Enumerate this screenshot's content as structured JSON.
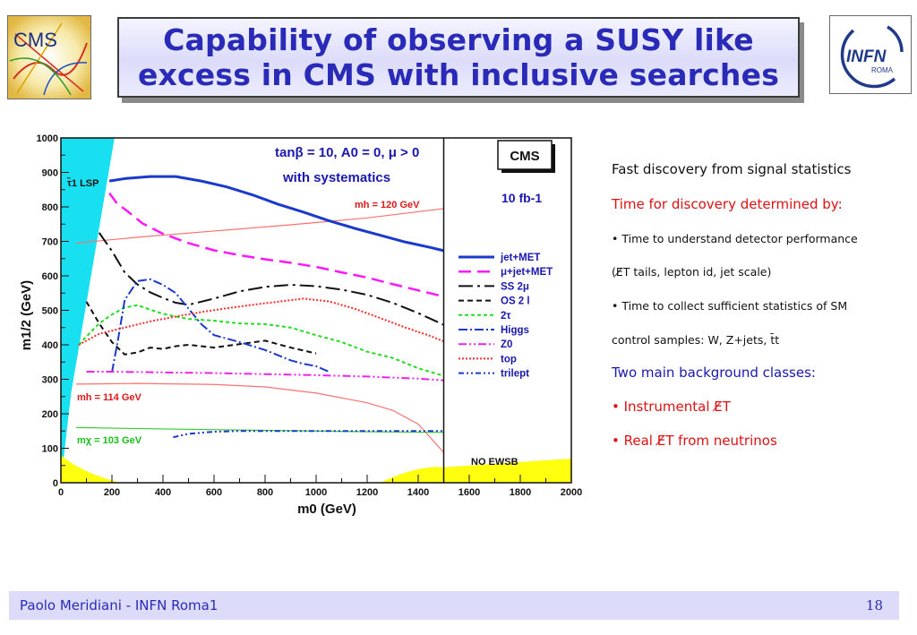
{
  "slide": {
    "title_line1": "Capability of observing a SUSY like",
    "title_line2": "excess in CMS with inclusive searches",
    "cms_logo_text": "CMS",
    "infn_logo_text": "INFN",
    "infn_logo_sub": "ROMA"
  },
  "notes": {
    "n1": "Fast discovery from signal statistics",
    "n2": "Time for discovery determined by:",
    "n3": "• Time to understand detector performance",
    "n4": "(E̸T tails, lepton id, jet scale)",
    "n5": "• Time to collect sufficient statistics of SM",
    "n6": "control samples: W, Z+jets, t̄t",
    "n7": "Two main background classes:",
    "n8": "• Instrumental E̸T",
    "n9": "• Real E̸T from neutrinos"
  },
  "footer": {
    "author": "Paolo Meridiani  - INFN Roma1",
    "page": "18"
  },
  "chart_data": {
    "type": "line",
    "xlabel": "m0 (GeV)",
    "ylabel": "m1/2 (GeV)",
    "xlim": [
      0,
      2000
    ],
    "ylim": [
      0,
      1000
    ],
    "xticks": [
      "0",
      "200",
      "400",
      "600",
      "800",
      "1000",
      "1200",
      "1400",
      "1600",
      "1800",
      "2000"
    ],
    "yticks": [
      "0",
      "100",
      "200",
      "300",
      "400",
      "500",
      "600",
      "700",
      "800",
      "900",
      "1000"
    ],
    "divider_x": 1500,
    "annotations": {
      "params1": "tanβ = 10, A0 = 0, μ > 0",
      "params2": "with systematics",
      "lumi": "10 fb-1",
      "cms_box": "CMS",
      "lsp": "τ̃1 LSP",
      "mh120": "mh = 120 GeV",
      "mh114": "mh = 114 GeV",
      "mchi103": "mχ = 103 GeV",
      "no_ewsb": "NO EWSB"
    },
    "colors": {
      "lsp_fill": "#18e0f0",
      "ewsb_fill": "#ffff10",
      "legend_text": "#1818b0",
      "mh_text": "#e01818",
      "mchi_text": "#18c018"
    },
    "series": [
      {
        "name": "jet+MET",
        "color": "#1a3acc",
        "dash": "",
        "width": 3,
        "x": [
          190,
          250,
          350,
          450,
          550,
          650,
          750,
          850,
          950,
          1050,
          1150,
          1250,
          1350,
          1450,
          1500
        ],
        "y": [
          875,
          882,
          888,
          888,
          875,
          858,
          835,
          808,
          785,
          760,
          738,
          718,
          698,
          682,
          673
        ]
      },
      {
        "name": "μ+jet+MET",
        "color": "#ff18ff",
        "dash": "14,7",
        "width": 2.5,
        "x": [
          190,
          220,
          260,
          320,
          400,
          500,
          600,
          700,
          800,
          900,
          1000,
          1100,
          1200,
          1300,
          1400,
          1500
        ],
        "y": [
          840,
          810,
          788,
          752,
          722,
          695,
          674,
          660,
          648,
          638,
          626,
          610,
          595,
          576,
          558,
          540
        ]
      },
      {
        "name": "SS 2μ",
        "color": "#111111",
        "dash": "16,5,3,5",
        "width": 2,
        "x": [
          150,
          200,
          250,
          300,
          350,
          400,
          450,
          500,
          600,
          700,
          800,
          900,
          1000,
          1100,
          1200,
          1300,
          1400,
          1500
        ],
        "y": [
          725,
          672,
          610,
          575,
          552,
          536,
          522,
          516,
          534,
          555,
          568,
          574,
          570,
          560,
          545,
          522,
          492,
          458
        ]
      },
      {
        "name": "OS 2 l",
        "color": "#111111",
        "dash": "6,4",
        "width": 2,
        "x": [
          100,
          150,
          200,
          250,
          300,
          350,
          400,
          450,
          500,
          600,
          700,
          800,
          900,
          1000
        ],
        "y": [
          525,
          462,
          408,
          372,
          378,
          392,
          388,
          396,
          400,
          392,
          402,
          412,
          392,
          375
        ]
      },
      {
        "name": "2τ",
        "color": "#22dd22",
        "dash": "4,3",
        "width": 2,
        "x": [
          70,
          100,
          150,
          200,
          250,
          300,
          350,
          400,
          450,
          500,
          600,
          700,
          800,
          900,
          1000,
          1100,
          1200,
          1300,
          1400,
          1500
        ],
        "y": [
          400,
          424,
          462,
          488,
          508,
          515,
          502,
          490,
          482,
          475,
          470,
          462,
          460,
          450,
          428,
          408,
          380,
          362,
          332,
          310
        ]
      },
      {
        "name": "Higgs",
        "color": "#1a3acc",
        "dash": "10,3,2,3",
        "width": 2,
        "x": [
          200,
          225,
          250,
          300,
          350,
          400,
          450,
          500,
          550,
          600,
          700,
          800,
          900,
          950,
          1000,
          1050
        ],
        "y": [
          320,
          420,
          530,
          585,
          590,
          574,
          550,
          505,
          460,
          428,
          408,
          385,
          355,
          345,
          338,
          322
        ]
      },
      {
        "name": "Z0",
        "color": "#ee22ee",
        "dash": "9,3,2,3,2,3",
        "width": 2,
        "x": [
          100,
          200,
          400,
          600,
          800,
          1000,
          1200,
          1400,
          1500
        ],
        "y": [
          322,
          322,
          320,
          318,
          315,
          312,
          308,
          302,
          297
        ]
      },
      {
        "name": "top",
        "color": "#ff2a2a",
        "dash": "2,2",
        "width": 2,
        "x": [
          70,
          150,
          250,
          350,
          450,
          550,
          650,
          750,
          850,
          950,
          1050,
          1150,
          1250,
          1350,
          1450,
          1500
        ],
        "y": [
          400,
          432,
          450,
          468,
          482,
          495,
          506,
          516,
          525,
          534,
          526,
          505,
          478,
          450,
          425,
          410
        ]
      },
      {
        "name": "trilept",
        "color": "#1a3acc",
        "dash": "6,3,2,3,2,3",
        "width": 2,
        "x": [
          440,
          500,
          600,
          700,
          800,
          1000,
          1200,
          1400,
          1500
        ],
        "y": [
          132,
          142,
          148,
          150,
          150,
          150,
          150,
          150,
          150
        ]
      }
    ],
    "ref_lines": [
      {
        "name": "mh = 120 GeV",
        "color": "#ff7070",
        "x": [
          60,
          300,
          600,
          900,
          1200,
          1500
        ],
        "y": [
          695,
          712,
          730,
          748,
          768,
          795
        ]
      },
      {
        "name": "mh = 114 GeV",
        "color": "#ff7070",
        "x": [
          60,
          300,
          600,
          800,
          1000,
          1200,
          1300,
          1400,
          1500
        ],
        "y": [
          286,
          288,
          285,
          278,
          260,
          232,
          210,
          170,
          88
        ]
      },
      {
        "name": "mχ = 103 GeV",
        "color": "#33cc33",
        "x": [
          60,
          400,
          800,
          1200,
          1500
        ],
        "y": [
          160,
          156,
          152,
          148,
          146
        ]
      }
    ]
  }
}
